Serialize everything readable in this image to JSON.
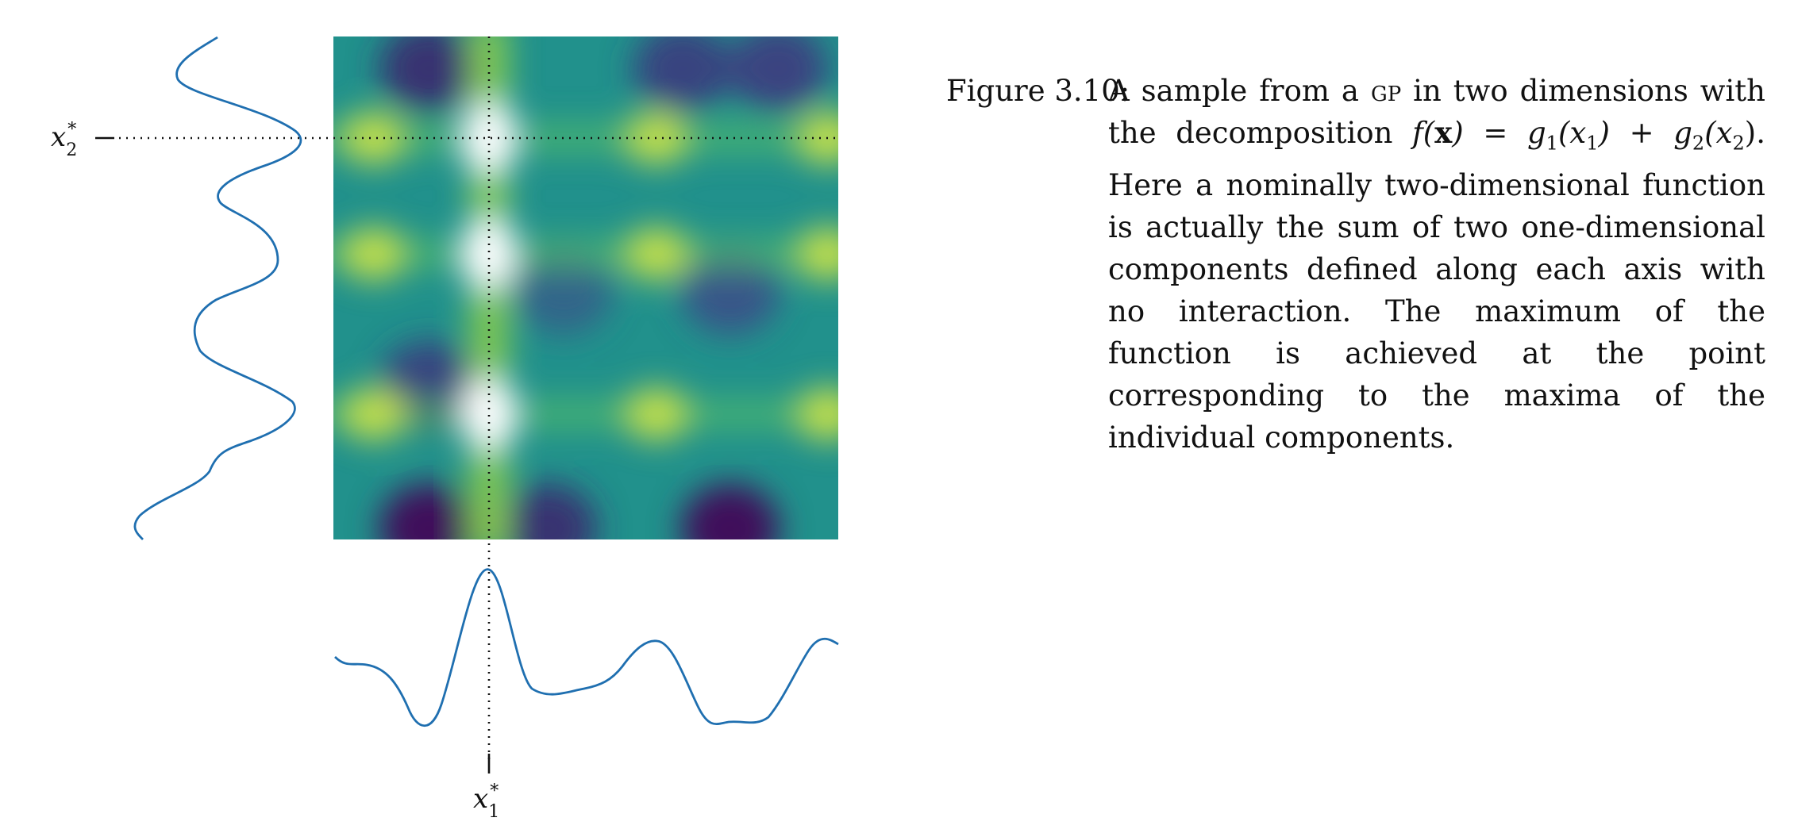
{
  "figure": {
    "x1_star": "x",
    "x1_sub": "1",
    "x2_star": "x",
    "x2_sub": "2",
    "star": "*",
    "colors": {
      "curve": "#1f6fb0",
      "heatmap_low": "#440154",
      "heatmap_mid": "#21918c",
      "heatmap_high": "#fde725",
      "heatmap_peak": "#ffffff"
    },
    "components": {
      "g1_peaks_fraction": [
        0.08,
        0.31,
        0.64,
        0.98
      ],
      "g2_peaks_fraction": [
        0.2,
        0.44,
        0.75
      ]
    }
  },
  "caption": {
    "label": "Figure 3.10:",
    "seg1": "A sample from a ",
    "gp": "gp",
    "seg2": " in two dimensions with the decomposition ",
    "f": "f",
    "xbold": "x",
    "eq": ") = g",
    "g1arg": "(x",
    "plus": ") + g",
    "g2arg": "(x",
    "sub1": "1",
    "sub2": "2",
    "seg3": "). Here a nominally two-dimensional function is actually the sum of two one-dimensional components defined along each axis with no interaction. The maximum of the function is achieved at the point corresponding to the maxima of the individual components."
  }
}
